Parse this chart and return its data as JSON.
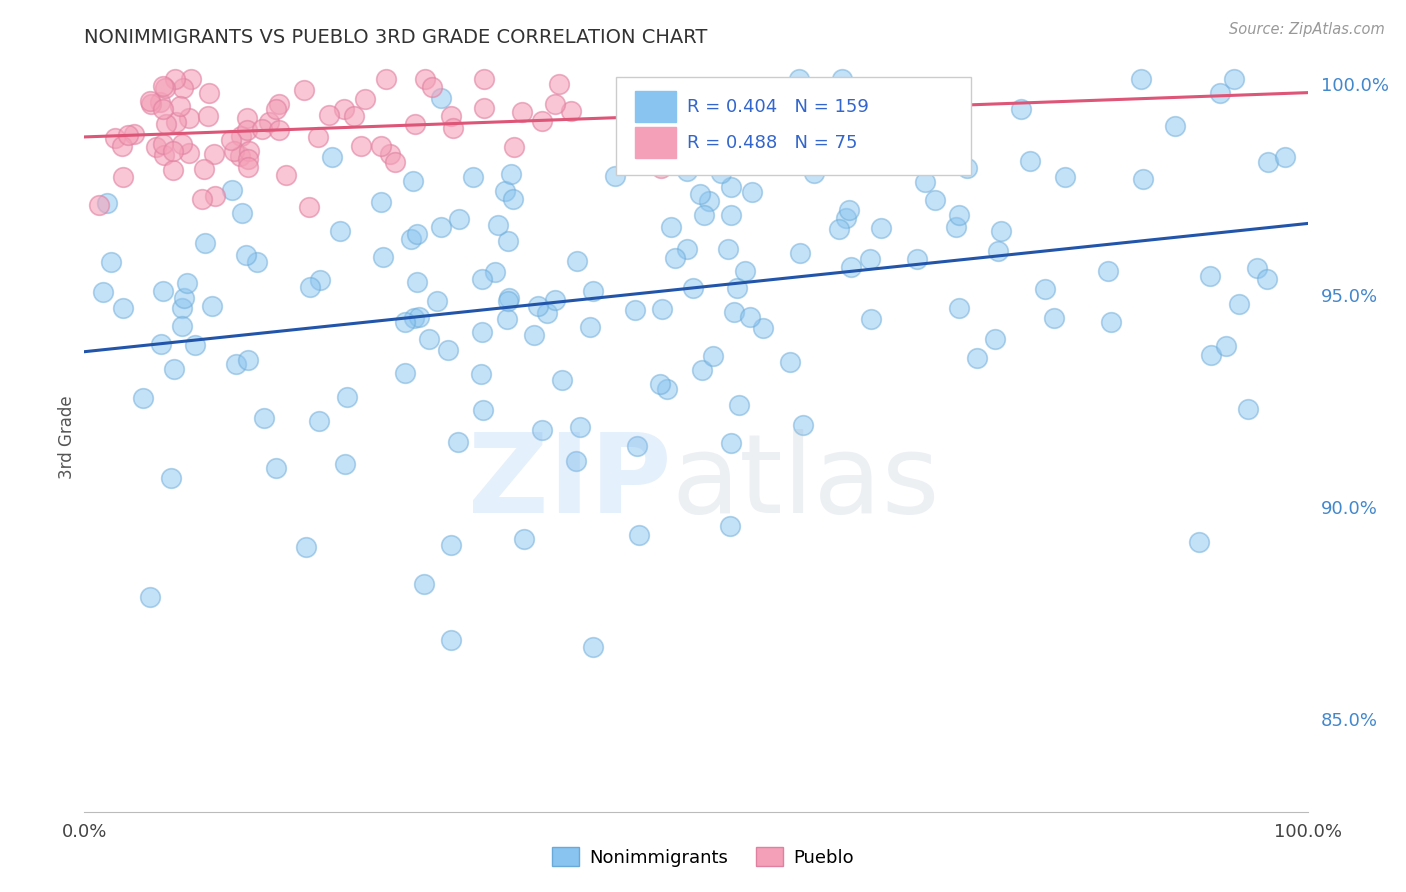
{
  "title": "NONIMMIGRANTS VS PUEBLO 3RD GRADE CORRELATION CHART",
  "source_text": "Source: ZipAtlas.com",
  "ylabel": "3rd Grade",
  "xlim": [
    0.0,
    1.0
  ],
  "ylim": [
    0.828,
    1.005
  ],
  "xtick_labels": [
    "0.0%",
    "100.0%"
  ],
  "ytick_labels_right": [
    "85.0%",
    "90.0%",
    "95.0%",
    "100.0%"
  ],
  "ytick_vals_right": [
    0.85,
    0.9,
    0.95,
    1.0
  ],
  "blue_R": 0.404,
  "blue_N": 159,
  "pink_R": 0.488,
  "pink_N": 75,
  "blue_color": "#89C4F0",
  "pink_color": "#F4A0B8",
  "blue_edge_color": "#6AAAD8",
  "pink_edge_color": "#E080A0",
  "blue_line_color": "#2255AA",
  "pink_line_color": "#DD5577",
  "background_color": "#FFFFFF",
  "grid_color": "#DDDDDD",
  "title_color": "#333333",
  "legend_label_blue": "Nonimmigrants",
  "legend_label_pink": "Pueblo",
  "blue_line_start_y": 0.942,
  "blue_line_end_y": 0.972,
  "pink_line_start_y": 0.988,
  "pink_line_end_y": 0.997
}
